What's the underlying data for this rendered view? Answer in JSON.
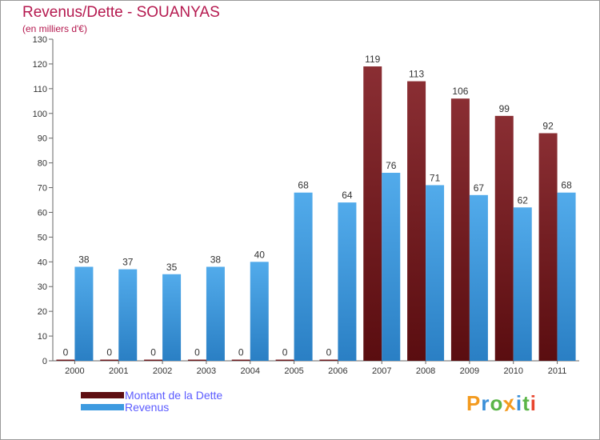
{
  "chart_data": {
    "type": "bar",
    "title": "Revenus/Dette - SOUANYAS",
    "subtitle": "(en milliers d'€)",
    "categories": [
      "2000",
      "2001",
      "2002",
      "2003",
      "2004",
      "2005",
      "2006",
      "2007",
      "2008",
      "2009",
      "2010",
      "2011"
    ],
    "series": [
      {
        "name": "Montant de la Dette",
        "color": "#7a1f23",
        "values": [
          0,
          0,
          0,
          0,
          0,
          0,
          0,
          119,
          113,
          106,
          99,
          92
        ]
      },
      {
        "name": "Revenus",
        "color": "#3d9ae0",
        "values": [
          38,
          37,
          35,
          38,
          40,
          68,
          64,
          76,
          71,
          67,
          62,
          68
        ]
      }
    ],
    "ylim": [
      0,
      130
    ],
    "yticks": [
      0,
      10,
      20,
      30,
      40,
      50,
      60,
      70,
      80,
      90,
      100,
      110,
      120,
      130
    ],
    "grid": false,
    "legend_position": "bottom-left"
  },
  "brand": {
    "text": "Proxiti",
    "colors": [
      "#f39a1e",
      "#3a8fd8",
      "#5bb548",
      "#f39a1e",
      "#3a8fd8",
      "#5bb548",
      "#e8452e"
    ]
  }
}
